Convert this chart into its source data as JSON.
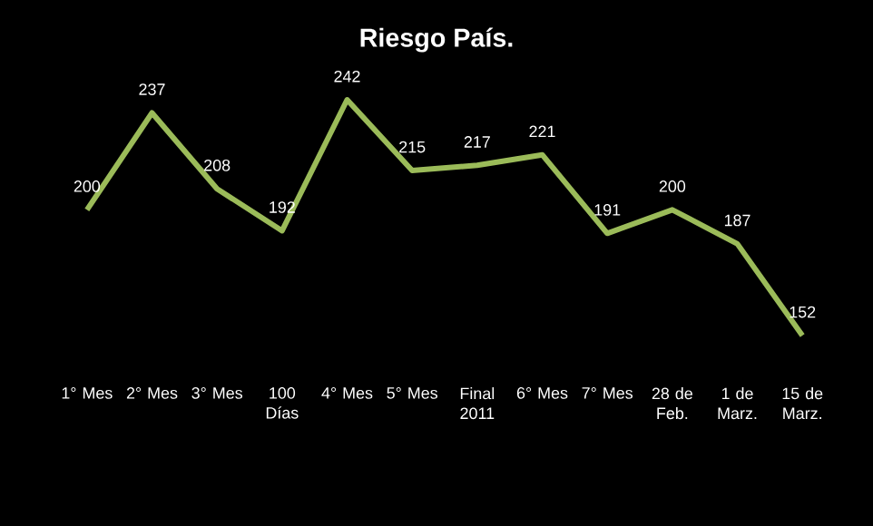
{
  "chart_data": {
    "type": "line",
    "title": "Riesgo País.",
    "categories": [
      "1° Mes",
      "2° Mes",
      "3° Mes",
      "100 Días",
      "4° Mes",
      "5° Mes",
      "Final 2011",
      "6° Mes",
      "7° Mes",
      "28 de Feb.",
      "1 de Marz.",
      "15 de Marz."
    ],
    "values": [
      200,
      237,
      208,
      192,
      242,
      215,
      217,
      221,
      191,
      200,
      187,
      152
    ],
    "color": "#9bbb59",
    "data_labels": true,
    "marker": "none"
  }
}
